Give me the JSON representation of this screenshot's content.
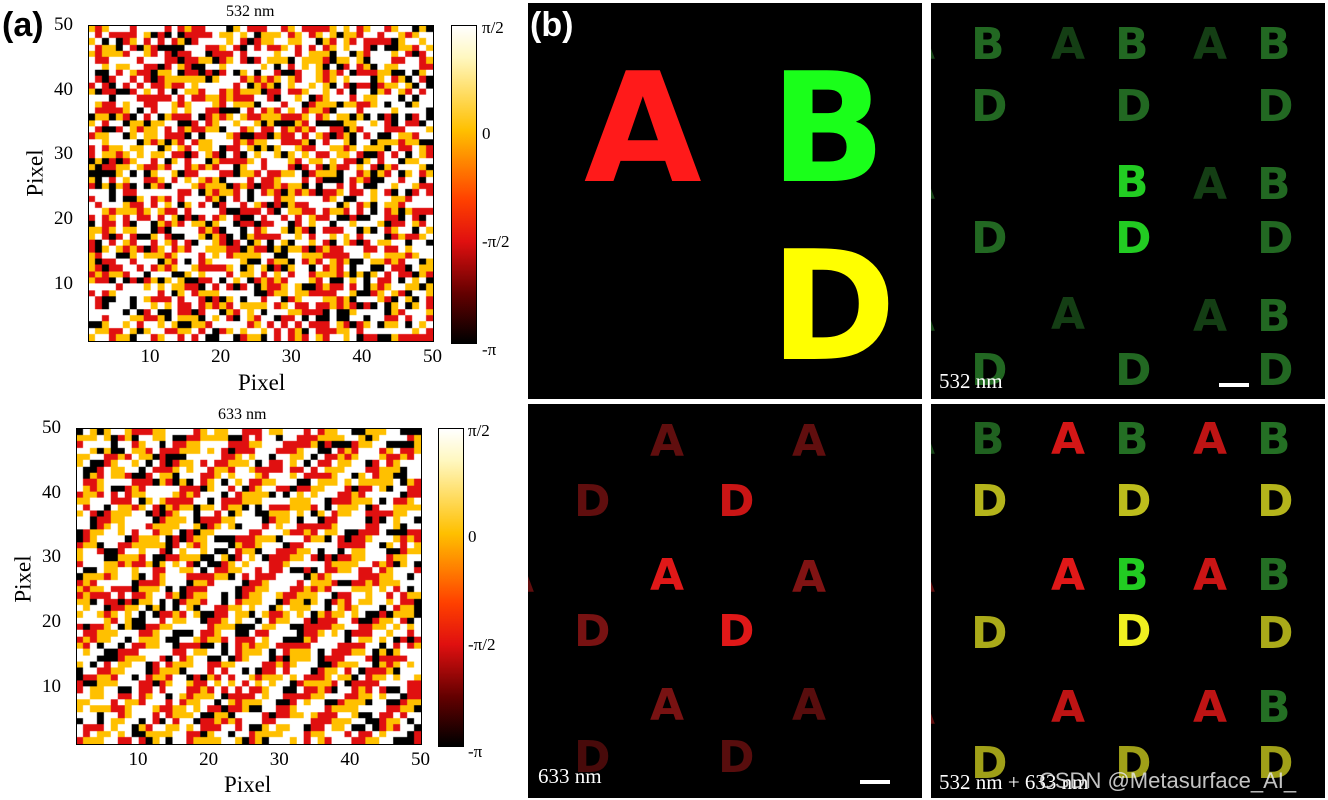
{
  "figure": {
    "panel_a_label": "(a)",
    "panel_b_label": "(b)",
    "watermark": "CSDN @Metasurface_AI_"
  },
  "chart_data": [
    {
      "type": "heatmap",
      "title": "532 nm",
      "xlabel": "Pixel",
      "ylabel": "Pixel",
      "x_ticks": [
        "10",
        "20",
        "30",
        "40",
        "50"
      ],
      "y_ticks": [
        "10",
        "20",
        "30",
        "40",
        "50"
      ],
      "xlim": [
        1,
        50
      ],
      "ylim": [
        1,
        50
      ],
      "grid_size": 50,
      "colorbar_ticks": [
        "π/2",
        "0",
        "-π/2",
        "-π"
      ],
      "colorbar_range": [
        "-π",
        "π/2"
      ],
      "levels": [
        "#000000",
        "#e01010",
        "#ffc000",
        "#ffffff"
      ],
      "pattern": "random"
    },
    {
      "type": "heatmap",
      "title": "633 nm",
      "xlabel": "Pixel",
      "ylabel": "Pixel",
      "x_ticks": [
        "10",
        "20",
        "30",
        "40",
        "50"
      ],
      "y_ticks": [
        "10",
        "20",
        "30",
        "40",
        "50"
      ],
      "xlim": [
        1,
        50
      ],
      "ylim": [
        1,
        50
      ],
      "grid_size": 50,
      "colorbar_ticks": [
        "π/2",
        "0",
        "-π/2",
        "-π"
      ],
      "colorbar_range": [
        "-π",
        "π/2"
      ],
      "levels": [
        "#000000",
        "#e01010",
        "#ffc000",
        "#ffffff"
      ],
      "pattern": "diagonal"
    }
  ],
  "panel_b": {
    "target": {
      "letters": [
        {
          "text": "A",
          "color": "#ff1a1a"
        },
        {
          "text": "B",
          "color": "#1aff1a"
        },
        {
          "text": "D",
          "color": "#ffff00"
        }
      ]
    },
    "captions": {
      "green": "532 nm",
      "red": "633 nm",
      "combined": "532 nm + 633 nm"
    },
    "tile_letters": {
      "A": "A",
      "B": "B",
      "D": "D"
    },
    "colors": {
      "green": "#2e8b2e",
      "green_bright": "#22cc22",
      "red": "#a01818",
      "red_bright": "#e01818",
      "yellow": "#c8c81e",
      "yellow_bright": "#f0f020"
    }
  }
}
